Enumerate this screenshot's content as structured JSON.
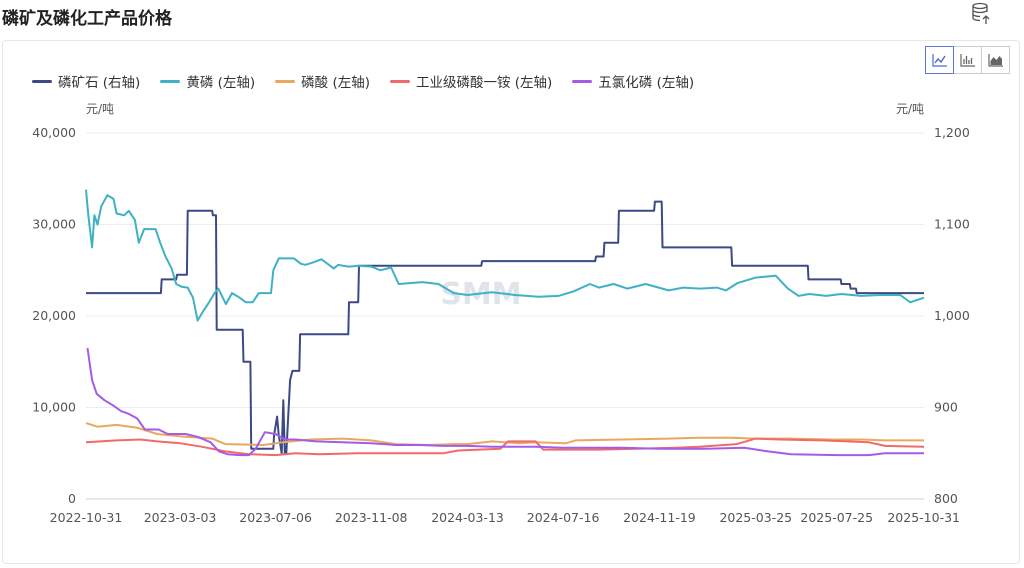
{
  "page": {
    "title": "磷矿及磷化工产品价格"
  },
  "icons": {
    "export": "database-export-icon"
  },
  "chart_switcher": [
    {
      "name": "line-chart-icon",
      "active": true
    },
    {
      "name": "bar-chart-icon",
      "active": false
    },
    {
      "name": "area-chart-icon",
      "active": false
    }
  ],
  "watermark": "SMM",
  "chart_data": {
    "type": "line",
    "title": "磷矿及磷化工产品价格",
    "x_range": [
      "2022-10-31",
      "2025-10-31"
    ],
    "x_ticks": [
      "2022-10-31",
      "2023-03-03",
      "2023-07-06",
      "2023-11-08",
      "2024-03-13",
      "2024-07-16",
      "2024-11-19",
      "2025-03-25",
      "2025-07-25",
      "2025-10-31"
    ],
    "y_left": {
      "unit": "元/吨",
      "range": [
        0,
        40000
      ],
      "ticks": [
        "0",
        "10,000",
        "20,000",
        "30,000",
        "40,000"
      ],
      "values": [
        0,
        10000,
        20000,
        30000,
        40000
      ]
    },
    "y_right": {
      "unit": "元/吨",
      "range": [
        800,
        1200
      ],
      "ticks": [
        "800",
        "900",
        "1,000",
        "1,100",
        "1,200"
      ],
      "values": [
        800,
        900,
        1000,
        1100,
        1200
      ]
    },
    "grid": "horizontal",
    "legend_position": "top-left",
    "series": [
      {
        "name": "磷矿石 (右轴)",
        "axis": "right",
        "color": "#3b4a86",
        "points": [
          [
            "2022-10-31",
            1025
          ],
          [
            "2023-02-06",
            1025
          ],
          [
            "2023-02-07",
            1040
          ],
          [
            "2023-02-26",
            1040
          ],
          [
            "2023-02-27",
            1045
          ],
          [
            "2023-03-12",
            1045
          ],
          [
            "2023-03-13",
            1115
          ],
          [
            "2023-04-14",
            1115
          ],
          [
            "2023-04-15",
            1110
          ],
          [
            "2023-04-19",
            1110
          ],
          [
            "2023-04-20",
            985
          ],
          [
            "2023-05-24",
            985
          ],
          [
            "2023-05-25",
            950
          ],
          [
            "2023-06-03",
            950
          ],
          [
            "2023-06-04",
            855
          ],
          [
            "2023-07-03",
            855
          ],
          [
            "2023-07-04",
            870
          ],
          [
            "2023-07-08",
            890
          ],
          [
            "2023-07-10",
            870
          ],
          [
            "2023-07-14",
            850
          ],
          [
            "2023-07-16",
            908
          ],
          [
            "2023-07-18",
            850
          ],
          [
            "2023-07-20",
            850
          ],
          [
            "2023-07-25",
            930
          ],
          [
            "2023-07-28",
            940
          ],
          [
            "2023-08-06",
            940
          ],
          [
            "2023-08-07",
            980
          ],
          [
            "2023-10-09",
            980
          ],
          [
            "2023-10-10",
            1015
          ],
          [
            "2023-10-22",
            1015
          ],
          [
            "2023-10-23",
            1055
          ],
          [
            "2024-03-31",
            1055
          ],
          [
            "2024-04-01",
            1060
          ],
          [
            "2024-08-27",
            1060
          ],
          [
            "2024-08-28",
            1065
          ],
          [
            "2024-09-07",
            1065
          ],
          [
            "2024-09-08",
            1080
          ],
          [
            "2024-09-26",
            1080
          ],
          [
            "2024-09-27",
            1115
          ],
          [
            "2024-11-12",
            1115
          ],
          [
            "2024-11-13",
            1125
          ],
          [
            "2024-11-22",
            1125
          ],
          [
            "2024-11-23",
            1075
          ],
          [
            "2025-02-21",
            1075
          ],
          [
            "2025-02-22",
            1055
          ],
          [
            "2025-06-01",
            1055
          ],
          [
            "2025-06-02",
            1040
          ],
          [
            "2025-07-14",
            1040
          ],
          [
            "2025-07-15",
            1035
          ],
          [
            "2025-07-26",
            1035
          ],
          [
            "2025-07-27",
            1030
          ],
          [
            "2025-08-03",
            1030
          ],
          [
            "2025-08-04",
            1025
          ],
          [
            "2025-10-31",
            1025
          ]
        ]
      },
      {
        "name": "黄磷 (左轴)",
        "axis": "left",
        "color": "#3fb1c4",
        "points": [
          [
            "2022-10-31",
            33800
          ],
          [
            "2022-11-03",
            31000
          ],
          [
            "2022-11-08",
            27500
          ],
          [
            "2022-11-11",
            31000
          ],
          [
            "2022-11-15",
            30000
          ],
          [
            "2022-11-20",
            32000
          ],
          [
            "2022-11-28",
            33200
          ],
          [
            "2022-12-06",
            32800
          ],
          [
            "2022-12-10",
            31200
          ],
          [
            "2022-12-20",
            31000
          ],
          [
            "2022-12-26",
            31500
          ],
          [
            "2023-01-03",
            30500
          ],
          [
            "2023-01-08",
            28000
          ],
          [
            "2023-01-15",
            29500
          ],
          [
            "2023-01-30",
            29500
          ],
          [
            "2023-02-05",
            28000
          ],
          [
            "2023-02-12",
            26500
          ],
          [
            "2023-02-20",
            25200
          ],
          [
            "2023-02-26",
            23500
          ],
          [
            "2023-03-05",
            23200
          ],
          [
            "2023-03-13",
            23100
          ],
          [
            "2023-03-20",
            22000
          ],
          [
            "2023-03-26",
            19500
          ],
          [
            "2023-04-02",
            20500
          ],
          [
            "2023-04-10",
            21500
          ],
          [
            "2023-04-17",
            22500
          ],
          [
            "2023-04-22",
            23000
          ],
          [
            "2023-05-02",
            21300
          ],
          [
            "2023-05-10",
            22500
          ],
          [
            "2023-05-20",
            22000
          ],
          [
            "2023-05-28",
            21500
          ],
          [
            "2023-06-06",
            21500
          ],
          [
            "2023-06-14",
            22500
          ],
          [
            "2023-06-30",
            22500
          ],
          [
            "2023-07-03",
            25000
          ],
          [
            "2023-07-10",
            26300
          ],
          [
            "2023-07-30",
            26300
          ],
          [
            "2023-08-08",
            25700
          ],
          [
            "2023-08-14",
            25600
          ],
          [
            "2023-08-22",
            25800
          ],
          [
            "2023-09-04",
            26200
          ],
          [
            "2023-09-20",
            25200
          ],
          [
            "2023-09-26",
            25600
          ],
          [
            "2023-10-02",
            25500
          ],
          [
            "2023-10-10",
            25400
          ],
          [
            "2023-10-22",
            25500
          ],
          [
            "2023-11-08",
            25400
          ],
          [
            "2023-11-20",
            25000
          ],
          [
            "2023-12-04",
            25300
          ],
          [
            "2023-12-14",
            23500
          ],
          [
            "2024-01-14",
            23700
          ],
          [
            "2024-02-04",
            23500
          ],
          [
            "2024-02-24",
            22500
          ],
          [
            "2024-03-13",
            22300
          ],
          [
            "2024-04-14",
            22600
          ],
          [
            "2024-05-14",
            22300
          ],
          [
            "2024-06-14",
            22100
          ],
          [
            "2024-07-10",
            22200
          ],
          [
            "2024-07-30",
            22700
          ],
          [
            "2024-08-20",
            23500
          ],
          [
            "2024-09-01",
            23100
          ],
          [
            "2024-09-20",
            23500
          ],
          [
            "2024-10-08",
            23000
          ],
          [
            "2024-11-01",
            23500
          ],
          [
            "2024-12-01",
            22800
          ],
          [
            "2024-12-20",
            23100
          ],
          [
            "2025-01-11",
            23000
          ],
          [
            "2025-02-02",
            23100
          ],
          [
            "2025-02-14",
            22800
          ],
          [
            "2025-03-01",
            23600
          ],
          [
            "2025-03-25",
            24200
          ],
          [
            "2025-04-20",
            24400
          ],
          [
            "2025-05-06",
            23000
          ],
          [
            "2025-05-20",
            22200
          ],
          [
            "2025-06-03",
            22400
          ],
          [
            "2025-06-25",
            22200
          ],
          [
            "2025-07-15",
            22400
          ],
          [
            "2025-08-10",
            22200
          ],
          [
            "2025-09-05",
            22300
          ],
          [
            "2025-09-30",
            22300
          ],
          [
            "2025-10-13",
            21500
          ],
          [
            "2025-10-31",
            22000
          ]
        ]
      },
      {
        "name": "磷酸 (左轴)",
        "axis": "left",
        "color": "#e9a85f",
        "points": [
          [
            "2022-10-31",
            8300
          ],
          [
            "2022-11-15",
            7900
          ],
          [
            "2022-12-10",
            8100
          ],
          [
            "2023-01-05",
            7800
          ],
          [
            "2023-02-01",
            7100
          ],
          [
            "2023-03-10",
            6800
          ],
          [
            "2023-04-14",
            6600
          ],
          [
            "2023-05-01",
            6000
          ],
          [
            "2023-06-20",
            5900
          ],
          [
            "2023-07-16",
            6200
          ],
          [
            "2023-08-20",
            6500
          ],
          [
            "2023-10-02",
            6600
          ],
          [
            "2023-11-08",
            6400
          ],
          [
            "2023-12-10",
            6000
          ],
          [
            "2024-01-20",
            5900
          ],
          [
            "2024-02-25",
            6000
          ],
          [
            "2024-03-13",
            6000
          ],
          [
            "2024-04-14",
            6300
          ],
          [
            "2024-05-20",
            6100
          ],
          [
            "2024-06-10",
            6200
          ],
          [
            "2024-07-20",
            6100
          ],
          [
            "2024-08-01",
            6400
          ],
          [
            "2024-10-01",
            6500
          ],
          [
            "2024-12-01",
            6600
          ],
          [
            "2025-01-10",
            6700
          ],
          [
            "2025-02-20",
            6700
          ],
          [
            "2025-03-25",
            6600
          ],
          [
            "2025-05-10",
            6600
          ],
          [
            "2025-07-01",
            6500
          ],
          [
            "2025-08-10",
            6500
          ],
          [
            "2025-09-10",
            6400
          ],
          [
            "2025-10-31",
            6400
          ]
        ]
      },
      {
        "name": "工业级磷酸一铵 (左轴)",
        "axis": "left",
        "color": "#f06a6a",
        "points": [
          [
            "2022-10-31",
            6200
          ],
          [
            "2022-12-10",
            6400
          ],
          [
            "2023-01-10",
            6500
          ],
          [
            "2023-02-01",
            6300
          ],
          [
            "2023-03-03",
            6100
          ],
          [
            "2023-04-01",
            5700
          ],
          [
            "2023-05-01",
            5200
          ],
          [
            "2023-06-01",
            4900
          ],
          [
            "2023-07-06",
            4800
          ],
          [
            "2023-08-01",
            5000
          ],
          [
            "2023-09-01",
            4900
          ],
          [
            "2023-10-20",
            5000
          ],
          [
            "2023-11-08",
            5000
          ],
          [
            "2024-01-01",
            5000
          ],
          [
            "2024-02-10",
            5000
          ],
          [
            "2024-03-01",
            5300
          ],
          [
            "2024-04-25",
            5500
          ],
          [
            "2024-05-05",
            6300
          ],
          [
            "2024-06-10",
            6300
          ],
          [
            "2024-06-20",
            5400
          ],
          [
            "2024-09-01",
            5400
          ],
          [
            "2024-10-20",
            5500
          ],
          [
            "2024-12-10",
            5600
          ],
          [
            "2025-01-10",
            5700
          ],
          [
            "2025-02-28",
            6000
          ],
          [
            "2025-03-25",
            6600
          ],
          [
            "2025-04-25",
            6500
          ],
          [
            "2025-06-20",
            6400
          ],
          [
            "2025-08-20",
            6200
          ],
          [
            "2025-09-10",
            5800
          ],
          [
            "2025-10-31",
            5700
          ]
        ]
      },
      {
        "name": "五氯化磷 (左轴)",
        "axis": "left",
        "color": "#a55be8",
        "points": [
          [
            "2022-11-02",
            16500
          ],
          [
            "2022-11-08",
            13000
          ],
          [
            "2022-11-14",
            11500
          ],
          [
            "2022-11-24",
            10800
          ],
          [
            "2022-12-06",
            10200
          ],
          [
            "2022-12-16",
            9600
          ],
          [
            "2022-12-26",
            9300
          ],
          [
            "2023-01-06",
            8800
          ],
          [
            "2023-01-16",
            7600
          ],
          [
            "2023-02-03",
            7600
          ],
          [
            "2023-02-15",
            7100
          ],
          [
            "2023-03-10",
            7100
          ],
          [
            "2023-03-26",
            6800
          ],
          [
            "2023-04-12",
            6200
          ],
          [
            "2023-04-23",
            5200
          ],
          [
            "2023-05-04",
            4900
          ],
          [
            "2023-05-20",
            4800
          ],
          [
            "2023-06-01",
            4800
          ],
          [
            "2023-06-10",
            5500
          ],
          [
            "2023-06-22",
            7300
          ],
          [
            "2023-07-06",
            7100
          ],
          [
            "2023-07-18",
            6500
          ],
          [
            "2023-08-01",
            6500
          ],
          [
            "2023-08-28",
            6300
          ],
          [
            "2023-10-01",
            6200
          ],
          [
            "2023-11-08",
            6100
          ],
          [
            "2023-12-10",
            5900
          ],
          [
            "2024-01-10",
            5900
          ],
          [
            "2024-02-10",
            5800
          ],
          [
            "2024-03-13",
            5800
          ],
          [
            "2024-04-14",
            5700
          ],
          [
            "2024-06-10",
            5700
          ],
          [
            "2024-07-16",
            5600
          ],
          [
            "2024-10-01",
            5600
          ],
          [
            "2024-11-19",
            5500
          ],
          [
            "2025-01-20",
            5500
          ],
          [
            "2025-03-10",
            5600
          ],
          [
            "2025-04-10",
            5200
          ],
          [
            "2025-05-10",
            4900
          ],
          [
            "2025-07-10",
            4800
          ],
          [
            "2025-08-20",
            4800
          ],
          [
            "2025-09-10",
            5000
          ],
          [
            "2025-10-31",
            5000
          ]
        ]
      }
    ]
  }
}
